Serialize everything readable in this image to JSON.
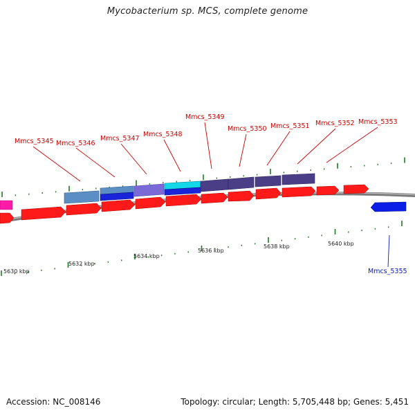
{
  "title": "Mycobacterium sp. MCS, complete genome",
  "footer": {
    "accession": "Accession: NC_008146",
    "stats": "Topology: circular; Length: 5,705,448 bp; Genes: 5,451"
  },
  "colors": {
    "background": "#ffffff",
    "backbone": "#8a8a8a",
    "cds_forward": "#ff1a1a",
    "cds_reverse": "#0a1ee6",
    "gene_label_top": "#cc0000",
    "gene_label_bottom": "#0a1ab8",
    "tick": "#1e7a1e",
    "cog_lightblue": "#5b8ec4",
    "cog_purple": "#7a6ad8",
    "cog_cyan": "#12d8e8",
    "cog_darkpurple": "#4a3f86",
    "rna_pink": "#ff1aa8"
  },
  "genes_top": [
    {
      "label": "Mmcs_5345"
    },
    {
      "label": "Mmcs_5346"
    },
    {
      "label": "Mmcs_5347"
    },
    {
      "label": "Mmcs_5348"
    },
    {
      "label": "Mmcs_5349"
    },
    {
      "label": "Mmcs_5350"
    },
    {
      "label": "Mmcs_5351"
    },
    {
      "label": "Mmcs_5352"
    },
    {
      "label": "Mmcs_5353"
    }
  ],
  "genes_bottom": [
    {
      "label": "Mmcs_5355"
    }
  ],
  "kbp_ticks": [
    {
      "label": "5630 kbp"
    },
    {
      "label": "5632 kbp"
    },
    {
      "label": "5634 kbp"
    },
    {
      "label": "5636 kbp"
    },
    {
      "label": "5638 kbp"
    },
    {
      "label": "5640 kbp"
    }
  ]
}
